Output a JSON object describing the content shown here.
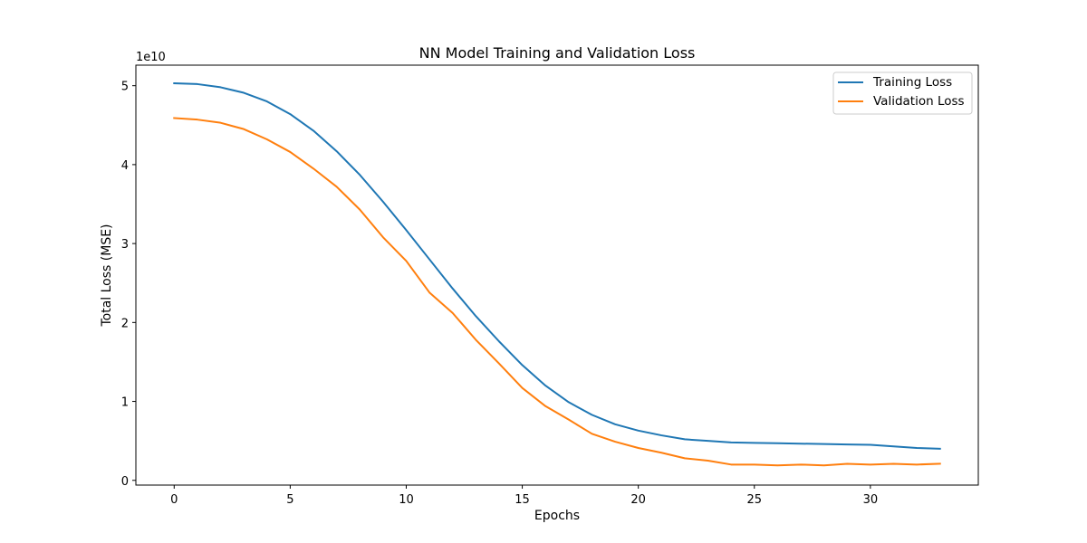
{
  "chart_data": {
    "type": "line",
    "title": "NN Model Training and Validation Loss",
    "xlabel": "Epochs",
    "ylabel": "Total Loss (MSE)",
    "y_offset_label": "1e10",
    "y_multiplier": 10000000000,
    "xlim": [
      -1.65,
      34.65
    ],
    "ylim": [
      -0.06,
      5.26
    ],
    "x_ticks": [
      0,
      5,
      10,
      15,
      20,
      25,
      30
    ],
    "y_ticks": [
      0,
      1,
      2,
      3,
      4,
      5
    ],
    "grid": false,
    "legend_position": "top-right",
    "x": [
      0,
      1,
      2,
      3,
      4,
      5,
      6,
      7,
      8,
      9,
      10,
      11,
      12,
      13,
      14,
      15,
      16,
      17,
      18,
      19,
      20,
      21,
      22,
      23,
      24,
      25,
      26,
      27,
      28,
      29,
      30,
      31,
      32,
      33
    ],
    "series": [
      {
        "name": "Training Loss",
        "color": "#1f77b4",
        "values": [
          5.03,
          5.02,
          4.98,
          4.91,
          4.8,
          4.64,
          4.43,
          4.17,
          3.87,
          3.53,
          3.17,
          2.8,
          2.43,
          2.08,
          1.76,
          1.46,
          1.2,
          0.99,
          0.83,
          0.71,
          0.63,
          0.57,
          0.52,
          0.5,
          0.48,
          0.475,
          0.47,
          0.465,
          0.46,
          0.455,
          0.45,
          0.43,
          0.41,
          0.4
        ]
      },
      {
        "name": "Validation Loss",
        "color": "#ff7f0e",
        "values": [
          4.59,
          4.57,
          4.53,
          4.45,
          4.32,
          4.16,
          3.95,
          3.72,
          3.43,
          3.08,
          2.78,
          2.38,
          2.12,
          1.78,
          1.48,
          1.17,
          0.94,
          0.77,
          0.59,
          0.49,
          0.41,
          0.35,
          0.28,
          0.25,
          0.2,
          0.2,
          0.19,
          0.2,
          0.19,
          0.21,
          0.2,
          0.21,
          0.2,
          0.21
        ]
      }
    ]
  }
}
